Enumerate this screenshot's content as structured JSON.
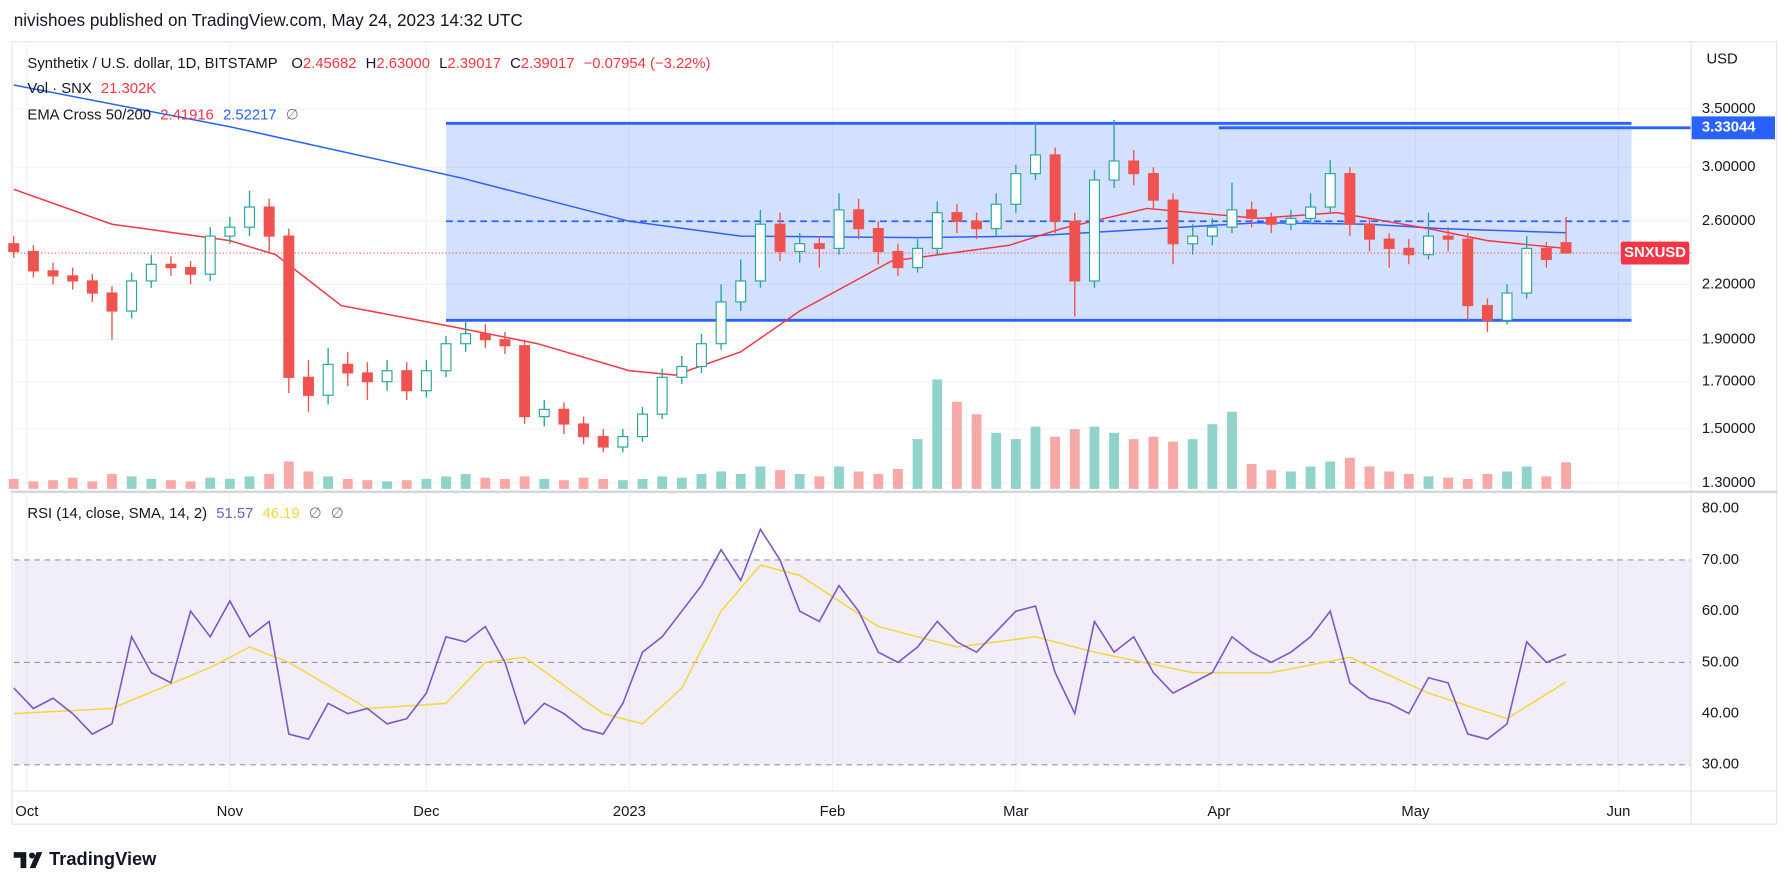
{
  "header": {
    "published": "nivishoes published on TradingView.com, May 24, 2023 14:32 UTC"
  },
  "footer": {
    "brand": "TradingView"
  },
  "chart_data": [
    {
      "type": "candlestick",
      "currency": "USD",
      "legend": {
        "symbol": "Synthetix / U.S. dollar, 1D, BITSTAMP",
        "ohlc": [
          {
            "key": "O",
            "value": "2.45682"
          },
          {
            "key": "H",
            "value": "2.63000"
          },
          {
            "key": "L",
            "value": "2.39017"
          },
          {
            "key": "C",
            "value": "2.39017"
          }
        ],
        "change": "−0.07954 (−3.22%)",
        "volume_label": "Vol · SNX",
        "volume_value": "21.302K",
        "ema_label": "EMA Cross 50/200",
        "ema_values": [
          "2.41916",
          "2.52217"
        ],
        "ema_flag": "∅"
      },
      "log_scale": true,
      "grid": true,
      "up_color": "#26a69a",
      "down_color": "#ef5350",
      "xlim": [
        0,
        256
      ],
      "xticks": [
        {
          "value": 2,
          "label": "Oct"
        },
        {
          "value": 33,
          "label": "Nov"
        },
        {
          "value": 63,
          "label": "Dec"
        },
        {
          "value": 94,
          "label": "2023"
        },
        {
          "value": 125,
          "label": "Feb"
        },
        {
          "value": 153,
          "label": "Mar"
        },
        {
          "value": 184,
          "label": "Apr"
        },
        {
          "value": 214,
          "label": "May"
        },
        {
          "value": 245,
          "label": "Jun"
        }
      ],
      "ylim": [
        1.28,
        4.19
      ],
      "yticks": [
        {
          "value": 1.3,
          "label": "1.30000"
        },
        {
          "value": 1.5,
          "label": "1.50000"
        },
        {
          "value": 1.7,
          "label": "1.70000"
        },
        {
          "value": 1.9,
          "label": "1.90000"
        },
        {
          "value": 2.2,
          "label": "2.20000"
        },
        {
          "value": 2.6,
          "label": "2.60000"
        },
        {
          "value": 3.0,
          "label": "3.00000"
        },
        {
          "value": 3.5,
          "label": "3.50000"
        }
      ],
      "x": [
        0,
        3,
        6,
        9,
        12,
        15,
        18,
        21,
        24,
        27,
        30,
        33,
        36,
        39,
        42,
        45,
        48,
        51,
        54,
        57,
        60,
        63,
        66,
        69,
        72,
        75,
        78,
        81,
        84,
        87,
        90,
        93,
        96,
        99,
        102,
        105,
        108,
        111,
        114,
        117,
        120,
        123,
        126,
        129,
        132,
        135,
        138,
        141,
        144,
        147,
        150,
        153,
        156,
        159,
        162,
        165,
        168,
        171,
        174,
        177,
        180,
        183,
        186,
        189,
        192,
        195,
        198,
        201,
        204,
        207,
        210,
        213,
        216,
        219,
        222,
        225,
        228,
        231,
        234,
        237
      ],
      "ohlc": [
        [
          2.45,
          2.5,
          2.36,
          2.4
        ],
        [
          2.4,
          2.44,
          2.24,
          2.28
        ],
        [
          2.28,
          2.33,
          2.2,
          2.25
        ],
        [
          2.25,
          2.3,
          2.17,
          2.22
        ],
        [
          2.22,
          2.26,
          2.1,
          2.15
        ],
        [
          2.15,
          2.19,
          1.9,
          2.05
        ],
        [
          2.05,
          2.27,
          2.01,
          2.22
        ],
        [
          2.22,
          2.38,
          2.18,
          2.32
        ],
        [
          2.32,
          2.37,
          2.25,
          2.3
        ],
        [
          2.3,
          2.34,
          2.2,
          2.26
        ],
        [
          2.26,
          2.56,
          2.22,
          2.5
        ],
        [
          2.5,
          2.63,
          2.45,
          2.56
        ],
        [
          2.56,
          2.82,
          2.5,
          2.7
        ],
        [
          2.7,
          2.76,
          2.4,
          2.5
        ],
        [
          2.5,
          2.55,
          1.65,
          1.72
        ],
        [
          1.72,
          1.8,
          1.57,
          1.64
        ],
        [
          1.64,
          1.86,
          1.6,
          1.78
        ],
        [
          1.78,
          1.84,
          1.68,
          1.74
        ],
        [
          1.74,
          1.79,
          1.62,
          1.7
        ],
        [
          1.7,
          1.8,
          1.66,
          1.75
        ],
        [
          1.75,
          1.79,
          1.62,
          1.66
        ],
        [
          1.66,
          1.8,
          1.63,
          1.75
        ],
        [
          1.75,
          1.92,
          1.72,
          1.88
        ],
        [
          1.88,
          2.0,
          1.84,
          1.93
        ],
        [
          1.93,
          1.98,
          1.86,
          1.9
        ],
        [
          1.9,
          1.94,
          1.83,
          1.87
        ],
        [
          1.87,
          1.9,
          1.52,
          1.55
        ],
        [
          1.55,
          1.62,
          1.51,
          1.58
        ],
        [
          1.58,
          1.61,
          1.48,
          1.52
        ],
        [
          1.52,
          1.55,
          1.44,
          1.47
        ],
        [
          1.47,
          1.5,
          1.41,
          1.43
        ],
        [
          1.43,
          1.5,
          1.41,
          1.47
        ],
        [
          1.47,
          1.59,
          1.45,
          1.56
        ],
        [
          1.56,
          1.76,
          1.54,
          1.72
        ],
        [
          1.72,
          1.82,
          1.69,
          1.77
        ],
        [
          1.77,
          1.93,
          1.74,
          1.88
        ],
        [
          1.88,
          2.2,
          1.85,
          2.1
        ],
        [
          2.1,
          2.35,
          2.05,
          2.22
        ],
        [
          2.22,
          2.68,
          2.18,
          2.58
        ],
        [
          2.58,
          2.66,
          2.34,
          2.4
        ],
        [
          2.4,
          2.52,
          2.33,
          2.45
        ],
        [
          2.45,
          2.5,
          2.3,
          2.42
        ],
        [
          2.42,
          2.8,
          2.38,
          2.68
        ],
        [
          2.68,
          2.76,
          2.48,
          2.55
        ],
        [
          2.55,
          2.6,
          2.32,
          2.4
        ],
        [
          2.4,
          2.45,
          2.25,
          2.3
        ],
        [
          2.3,
          2.48,
          2.27,
          2.42
        ],
        [
          2.42,
          2.74,
          2.38,
          2.66
        ],
        [
          2.66,
          2.72,
          2.52,
          2.6
        ],
        [
          2.6,
          2.66,
          2.48,
          2.55
        ],
        [
          2.55,
          2.8,
          2.5,
          2.72
        ],
        [
          2.72,
          3.02,
          2.66,
          2.95
        ],
        [
          2.95,
          3.38,
          2.9,
          3.1
        ],
        [
          3.1,
          3.16,
          2.52,
          2.6
        ],
        [
          2.6,
          2.66,
          2.02,
          2.22
        ],
        [
          2.22,
          2.98,
          2.18,
          2.9
        ],
        [
          2.9,
          3.4,
          2.84,
          3.05
        ],
        [
          3.05,
          3.14,
          2.86,
          2.95
        ],
        [
          2.95,
          3.0,
          2.68,
          2.75
        ],
        [
          2.75,
          2.8,
          2.32,
          2.45
        ],
        [
          2.45,
          2.58,
          2.38,
          2.5
        ],
        [
          2.5,
          2.62,
          2.44,
          2.56
        ],
        [
          2.56,
          2.88,
          2.52,
          2.68
        ],
        [
          2.68,
          2.74,
          2.56,
          2.62
        ],
        [
          2.62,
          2.66,
          2.52,
          2.58
        ],
        [
          2.58,
          2.68,
          2.54,
          2.62
        ],
        [
          2.62,
          2.8,
          2.58,
          2.7
        ],
        [
          2.7,
          3.06,
          2.66,
          2.95
        ],
        [
          2.95,
          3.0,
          2.5,
          2.58
        ],
        [
          2.58,
          2.62,
          2.4,
          2.48
        ],
        [
          2.48,
          2.52,
          2.3,
          2.42
        ],
        [
          2.42,
          2.48,
          2.32,
          2.38
        ],
        [
          2.38,
          2.66,
          2.35,
          2.5
        ],
        [
          2.5,
          2.56,
          2.4,
          2.48
        ],
        [
          2.48,
          2.52,
          2.0,
          2.08
        ],
        [
          2.08,
          2.12,
          1.94,
          2.0
        ],
        [
          2.0,
          2.2,
          1.98,
          2.15
        ],
        [
          2.15,
          2.5,
          2.12,
          2.42
        ],
        [
          2.42,
          2.46,
          2.3,
          2.35
        ],
        [
          2.45682,
          2.63,
          2.39017,
          2.39017
        ]
      ],
      "volume": {
        "ylim": [
          0,
          360
        ],
        "up_color": "#8fd3ca",
        "down_color": "#f7a9a7",
        "values": [
          8,
          6,
          7,
          9,
          6,
          12,
          10,
          8,
          7,
          6,
          9,
          8,
          10,
          12,
          22,
          14,
          10,
          8,
          7,
          6,
          7,
          8,
          10,
          12,
          9,
          8,
          10,
          8,
          7,
          9,
          8,
          7,
          8,
          10,
          9,
          12,
          14,
          12,
          18,
          15,
          12,
          10,
          18,
          14,
          12,
          16,
          40,
          88,
          70,
          60,
          45,
          40,
          50,
          42,
          48,
          50,
          45,
          40,
          42,
          38,
          40,
          52,
          62,
          20,
          15,
          14,
          18,
          22,
          25,
          18,
          14,
          12,
          10,
          9,
          8,
          12,
          14,
          18,
          10,
          21.302
        ]
      },
      "ema_fast": {
        "color": "#f23645",
        "x": [
          0,
          15,
          33,
          40,
          50,
          68,
          80,
          94,
          101,
          111,
          120,
          134,
          152,
          160,
          173,
          190,
          202,
          216,
          225,
          237
        ],
        "values": [
          2.83,
          2.58,
          2.47,
          2.38,
          2.08,
          1.96,
          1.88,
          1.75,
          1.73,
          1.84,
          2.05,
          2.34,
          2.44,
          2.55,
          2.69,
          2.62,
          2.66,
          2.55,
          2.47,
          2.41916
        ]
      },
      "ema_slow": {
        "color": "#2962ff",
        "x": [
          0,
          33,
          68,
          94,
          111,
          138,
          155,
          190,
          207,
          218,
          237
        ],
        "values": [
          3.73,
          3.34,
          2.92,
          2.6,
          2.5,
          2.49,
          2.5,
          2.59,
          2.58,
          2.55,
          2.52217
        ]
      },
      "range_box": {
        "color": "#2962ff",
        "x": [
          66,
          247
        ],
        "y": [
          2.0,
          3.37
        ],
        "mid": 2.6
      },
      "hline": {
        "color": "#2962ff",
        "x": 184,
        "value": 3.33044
      },
      "last_price": 2.39017,
      "last_label": "SNXUSD"
    },
    {
      "type": "line",
      "legend": {
        "label": "RSI (14, close, SMA, 14, 2)",
        "values": [
          "51.57",
          "46.19"
        ],
        "flags": [
          "∅",
          "∅"
        ]
      },
      "ylim": [
        25,
        83
      ],
      "yticks": [
        {
          "value": 30,
          "label": "30.00"
        },
        {
          "value": 40,
          "label": "40.00"
        },
        {
          "value": 50,
          "label": "50.00"
        },
        {
          "value": 60,
          "label": "60.00"
        },
        {
          "value": 70,
          "label": "70.00"
        },
        {
          "value": 80,
          "label": "80.00"
        }
      ],
      "levels": [
        30,
        50,
        70
      ],
      "band_color": "#7e57c2",
      "x": [
        0,
        3,
        6,
        9,
        12,
        15,
        18,
        21,
        24,
        27,
        30,
        33,
        36,
        39,
        42,
        45,
        48,
        51,
        54,
        57,
        60,
        63,
        66,
        69,
        72,
        75,
        78,
        81,
        84,
        87,
        90,
        93,
        96,
        99,
        102,
        105,
        108,
        111,
        114,
        117,
        120,
        123,
        126,
        129,
        132,
        135,
        138,
        141,
        144,
        147,
        150,
        153,
        156,
        159,
        162,
        165,
        168,
        171,
        174,
        177,
        180,
        183,
        186,
        189,
        192,
        195,
        198,
        201,
        204,
        207,
        210,
        213,
        216,
        219,
        222,
        225,
        228,
        231,
        234,
        237
      ],
      "series": [
        {
          "color": "#7e57c2",
          "values": [
            45,
            41,
            43,
            40,
            36,
            38,
            55,
            48,
            46,
            60,
            55,
            62,
            55,
            58,
            36,
            35,
            42,
            40,
            41,
            38,
            39,
            44,
            55,
            54,
            57,
            50,
            38,
            42,
            40,
            37,
            36,
            42,
            52,
            55,
            60,
            65,
            72,
            66,
            76,
            70,
            60,
            58,
            65,
            60,
            52,
            50,
            53,
            58,
            54,
            52,
            56,
            60,
            61,
            48,
            40,
            58,
            52,
            55,
            48,
            44,
            46,
            48,
            55,
            52,
            50,
            52,
            55,
            60,
            46,
            43,
            42,
            40,
            47,
            46,
            36,
            35,
            38,
            54,
            50,
            51.57
          ]
        }
      ],
      "sma": {
        "color": "#f5d63d",
        "x": [
          0,
          15,
          30,
          36,
          42,
          54,
          66,
          72,
          78,
          90,
          96,
          102,
          108,
          114,
          120,
          132,
          144,
          156,
          165,
          180,
          192,
          204,
          216,
          228,
          237
        ],
        "values": [
          40,
          41,
          49,
          53,
          50,
          41,
          42,
          50,
          51,
          40,
          38,
          45,
          60,
          69,
          67,
          57,
          53,
          55,
          52,
          48,
          48,
          51,
          44,
          39,
          46.19
        ]
      }
    }
  ]
}
